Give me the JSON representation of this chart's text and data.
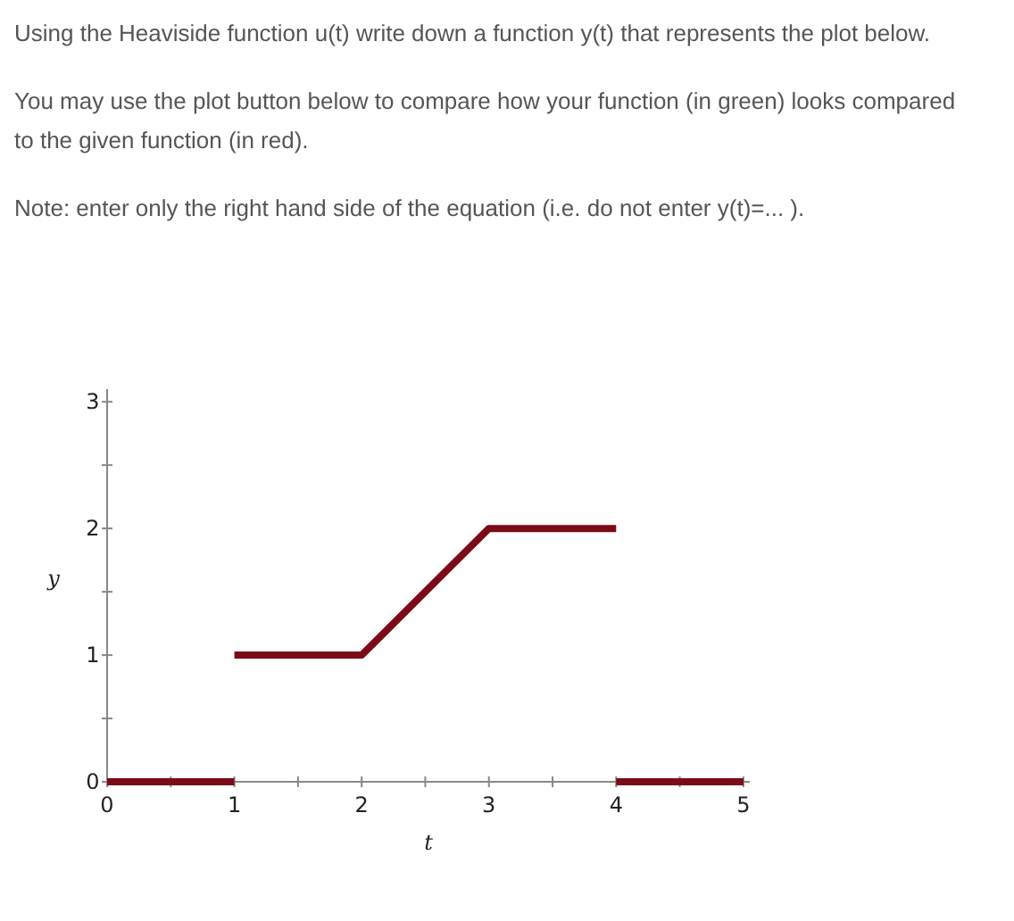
{
  "chart_data": {
    "type": "line",
    "annotations": [
      "Using the Heaviside function u(t) write down a function y(t) that represents the plot below.",
      "You may use the plot button below to compare how your function (in green) looks compared to the given function (in red).",
      "Note: enter only the right hand side of the equation (i.e. do not enter y(t)=... )."
    ],
    "xlabel": "t",
    "ylabel": "y",
    "xlim": [
      0,
      5.05
    ],
    "ylim": [
      0,
      3.1
    ],
    "xticks": [
      0,
      {
        "value": 0.5,
        "label": null
      },
      1,
      {
        "value": 1.5,
        "label": null
      },
      2,
      {
        "value": 2.5,
        "label": null
      },
      3,
      {
        "value": 3.5,
        "label": null
      },
      4,
      {
        "value": 4.5,
        "label": null
      },
      5
    ],
    "yticks": [
      0,
      {
        "value": 0.5,
        "label": null
      },
      1,
      {
        "value": 1.5,
        "label": null
      },
      2,
      {
        "value": 2.5,
        "label": null
      },
      3
    ],
    "series": [
      {
        "color": "#7b0b16",
        "x": [
          0,
          1
        ],
        "values": [
          0,
          0
        ]
      },
      {
        "color": "#7b0b16",
        "x": [
          1,
          2,
          3,
          4
        ],
        "values": [
          1,
          1,
          2,
          2
        ]
      },
      {
        "color": "#7b0b16",
        "x": [
          4,
          5
        ],
        "values": [
          0,
          0
        ]
      }
    ]
  }
}
